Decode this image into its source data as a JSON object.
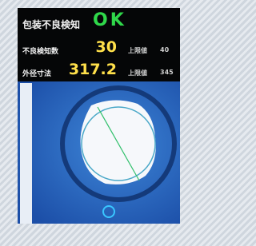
{
  "header": {
    "title": "包装不良検知",
    "status": "OK"
  },
  "rows": [
    {
      "label": "不良検知数",
      "value": "30",
      "limit_label": "上限値",
      "limit": "40"
    },
    {
      "label": "外径寸法",
      "value": "317.2",
      "limit_label": "上限値",
      "limit": "345"
    }
  ]
}
